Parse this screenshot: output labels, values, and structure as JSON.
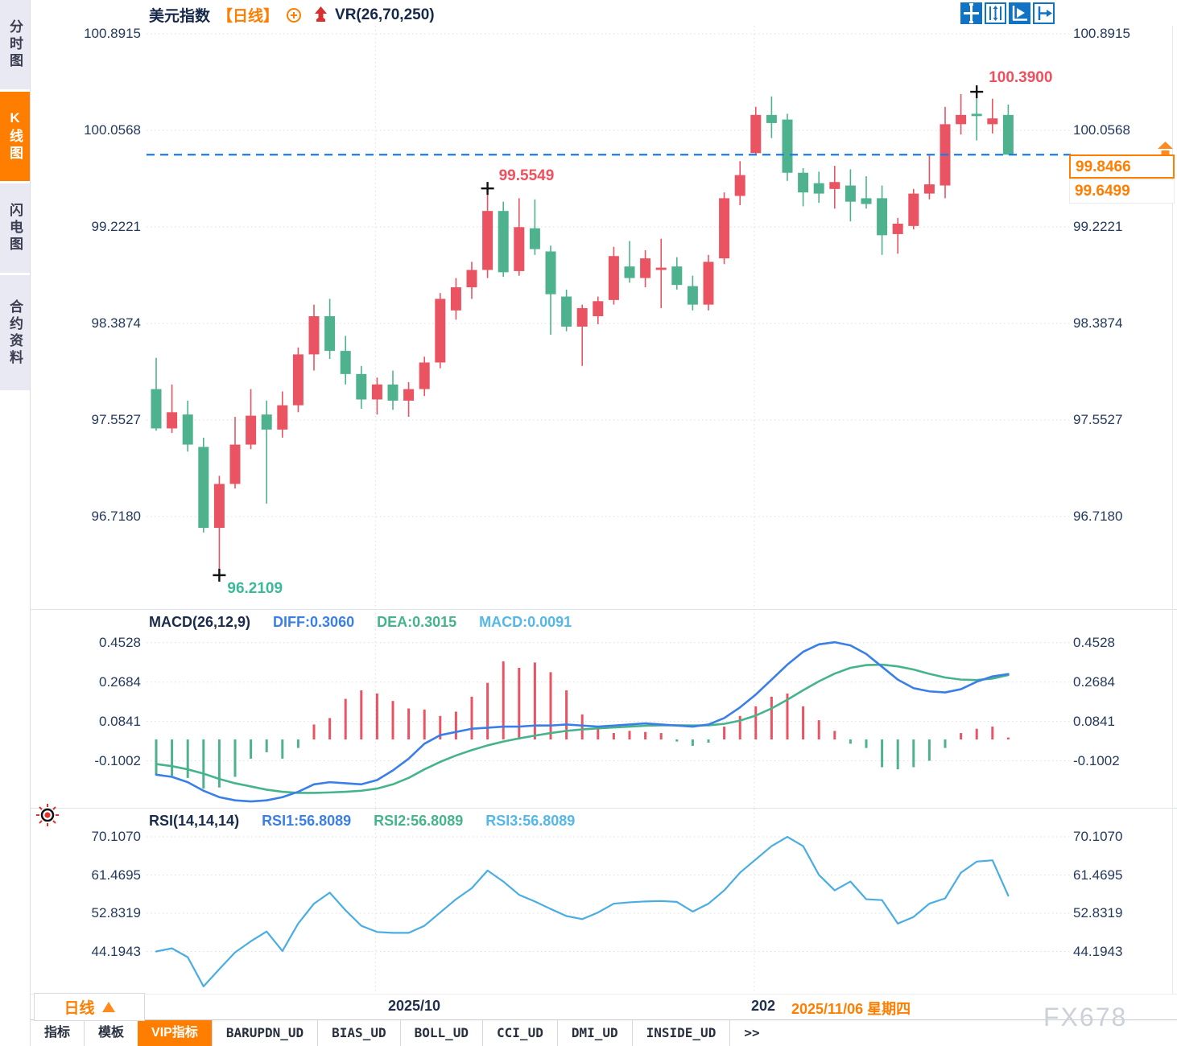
{
  "sidebar": {
    "items": [
      {
        "label": "分时图",
        "active": false
      },
      {
        "label": "K线图",
        "active": true
      },
      {
        "label": "闪电图",
        "active": false
      },
      {
        "label": "合约资料",
        "active": false
      }
    ]
  },
  "header": {
    "symbol": "美元指数",
    "period_tag": "【日线】",
    "indicator_label": "VR(26,70,250)"
  },
  "toolbar": {
    "icons": [
      "move-crosshair-icon",
      "axis-scale-icon",
      "auto-fit-icon",
      "go-to-latest-icon"
    ]
  },
  "price_axis": {
    "labels": [
      "100.8915",
      "100.0568",
      "99.2221",
      "98.3874",
      "97.5527",
      "96.7180"
    ]
  },
  "price_marks": {
    "current": "99.8466",
    "secondary": "99.6499",
    "high_annotation": "100.3900",
    "peak_annotation": "99.5549",
    "low_annotation": "96.2109"
  },
  "macd": {
    "title": "MACD(26,12,9)",
    "diff_label": "DIFF:0.3060",
    "dea_label": "DEA:0.3015",
    "macd_label": "MACD:0.0091",
    "axis": [
      "0.4528",
      "0.2684",
      "0.0841",
      "-0.1002"
    ]
  },
  "rsi": {
    "title": "RSI(14,14,14)",
    "rsi1_label": "RSI1:56.8089",
    "rsi2_label": "RSI2:56.8089",
    "rsi3_label": "RSI3:56.8089",
    "axis": [
      "70.1070",
      "61.4695",
      "52.8319",
      "44.1943"
    ]
  },
  "time_axis": {
    "period_button": "日线",
    "label_left": "2025/10",
    "label_partial": "202",
    "label_current": "2025/11/06 星期四"
  },
  "bottom_tabs": {
    "active": "VIP指标",
    "items": [
      "指标",
      "模板",
      "VIP指标",
      "BARUPDN_UD",
      "BIAS_UD",
      "BOLL_UD",
      "CCI_UD",
      "DMI_UD",
      "INSIDE_UD",
      ">>"
    ]
  },
  "watermark": "FX678",
  "colors": {
    "up": "#ea5462",
    "down": "#4fb28e",
    "accent_orange": "#ff7e00",
    "dashed_line_blue": "#1a7ce8",
    "diff_blue": "#3a7fe8",
    "dea_green": "#46b48a",
    "macd_cyan": "#54b7ea",
    "rsi_line": "#49ade4",
    "annotation_red": "#f0505e",
    "annotation_teal": "#3cb89a",
    "axis_text": "#24395c",
    "toolbar_blue": "#1272c4",
    "grid": "#dedede"
  },
  "chart_data": {
    "type": "candlestick",
    "title": "美元指数 日线",
    "indicator_header": "VR(26,70,250)",
    "price_gridlines": [
      100.8915,
      100.0568,
      99.2221,
      98.3874,
      97.5527,
      96.718
    ],
    "current_price": 99.8466,
    "secondary_price": 99.6499,
    "candles_ohlc": [
      [
        97.82,
        98.09,
        97.46,
        97.48
      ],
      [
        97.48,
        97.86,
        97.44,
        97.62
      ],
      [
        97.6,
        97.72,
        97.28,
        97.34
      ],
      [
        97.32,
        97.4,
        96.58,
        96.62
      ],
      [
        96.62,
        97.07,
        96.21,
        97.0
      ],
      [
        97.0,
        97.58,
        96.96,
        97.34
      ],
      [
        97.34,
        97.82,
        97.3,
        97.59
      ],
      [
        97.6,
        97.72,
        96.83,
        97.47
      ],
      [
        97.47,
        97.8,
        97.4,
        97.68
      ],
      [
        97.68,
        98.18,
        97.62,
        98.12
      ],
      [
        98.12,
        98.55,
        97.98,
        98.45
      ],
      [
        98.45,
        98.6,
        98.08,
        98.15
      ],
      [
        98.15,
        98.28,
        97.86,
        97.95
      ],
      [
        97.95,
        98.02,
        97.65,
        97.73
      ],
      [
        97.73,
        97.92,
        97.6,
        97.86
      ],
      [
        97.86,
        97.98,
        97.64,
        97.72
      ],
      [
        97.72,
        97.88,
        97.58,
        97.82
      ],
      [
        97.82,
        98.1,
        97.76,
        98.05
      ],
      [
        98.05,
        98.65,
        98.0,
        98.6
      ],
      [
        98.5,
        98.78,
        98.42,
        98.7
      ],
      [
        98.7,
        98.92,
        98.6,
        98.85
      ],
      [
        98.85,
        99.5549,
        98.78,
        99.36
      ],
      [
        99.36,
        99.44,
        98.79,
        98.83
      ],
      [
        98.84,
        99.47,
        98.8,
        99.22
      ],
      [
        99.21,
        99.46,
        98.98,
        99.03
      ],
      [
        99.01,
        99.06,
        98.29,
        98.64
      ],
      [
        98.62,
        98.68,
        98.32,
        98.36
      ],
      [
        98.36,
        98.55,
        98.02,
        98.52
      ],
      [
        98.45,
        98.62,
        98.38,
        98.58
      ],
      [
        98.59,
        99.05,
        98.55,
        98.97
      ],
      [
        98.88,
        99.1,
        98.74,
        98.78
      ],
      [
        98.78,
        99.02,
        98.7,
        98.95
      ],
      [
        98.85,
        99.12,
        98.52,
        98.87
      ],
      [
        98.88,
        98.96,
        98.68,
        98.72
      ],
      [
        98.71,
        98.8,
        98.5,
        98.55
      ],
      [
        98.55,
        98.98,
        98.5,
        98.92
      ],
      [
        98.95,
        99.52,
        98.9,
        99.47
      ],
      [
        99.49,
        99.79,
        99.41,
        99.67
      ],
      [
        99.86,
        100.26,
        99.84,
        100.19
      ],
      [
        100.19,
        100.35,
        99.99,
        100.12
      ],
      [
        100.15,
        100.2,
        99.62,
        99.69
      ],
      [
        99.69,
        99.73,
        99.4,
        99.52
      ],
      [
        99.6,
        99.7,
        99.43,
        99.51
      ],
      [
        99.55,
        99.75,
        99.38,
        99.61
      ],
      [
        99.58,
        99.72,
        99.27,
        99.44
      ],
      [
        99.47,
        99.66,
        99.38,
        99.42
      ],
      [
        99.47,
        99.58,
        98.98,
        99.15
      ],
      [
        99.16,
        99.3,
        98.99,
        99.25
      ],
      [
        99.23,
        99.55,
        99.2,
        99.51
      ],
      [
        99.51,
        99.84,
        99.46,
        99.59
      ],
      [
        99.58,
        100.26,
        99.47,
        100.11
      ],
      [
        100.11,
        100.37,
        100.02,
        100.19
      ],
      [
        100.2,
        100.39,
        99.97,
        100.18
      ],
      [
        100.11,
        100.33,
        100.03,
        100.16
      ],
      [
        100.19,
        100.28,
        99.8466,
        99.8466
      ]
    ],
    "annotations": [
      {
        "name": "low",
        "index": 4,
        "price": 96.2109,
        "label": "96.2109"
      },
      {
        "name": "peak",
        "index": 21,
        "price": 99.5549,
        "label": "99.5549"
      },
      {
        "name": "high",
        "index": 52,
        "price": 100.39,
        "label": "100.3900"
      }
    ],
    "time_gridline_indices": [
      14,
      38
    ],
    "macd": {
      "params": [
        26,
        12,
        9
      ],
      "diff": 0.306,
      "dea": 0.3015,
      "macd": 0.0091,
      "gridlines": [
        0.4528,
        0.2684,
        0.0841,
        -0.1002
      ],
      "hist": [
        -0.165,
        -0.17,
        -0.18,
        -0.23,
        -0.225,
        -0.175,
        -0.09,
        -0.06,
        -0.09,
        -0.04,
        0.07,
        0.1,
        0.19,
        0.23,
        0.215,
        0.18,
        0.145,
        0.14,
        0.11,
        0.13,
        0.2,
        0.265,
        0.365,
        0.335,
        0.36,
        0.315,
        0.23,
        0.117,
        0.057,
        0.03,
        0.04,
        0.035,
        0.03,
        -0.01,
        -0.03,
        -0.015,
        0.06,
        0.11,
        0.155,
        0.2,
        0.215,
        0.155,
        0.09,
        0.04,
        -0.02,
        -0.04,
        -0.13,
        -0.14,
        -0.13,
        -0.1,
        -0.04,
        0.03,
        0.05,
        0.06,
        0.009
      ],
      "diff_line": [
        -0.165,
        -0.175,
        -0.2,
        -0.24,
        -0.27,
        -0.285,
        -0.29,
        -0.285,
        -0.27,
        -0.245,
        -0.21,
        -0.2,
        -0.205,
        -0.21,
        -0.19,
        -0.145,
        -0.09,
        -0.02,
        0.02,
        0.035,
        0.05,
        0.055,
        0.06,
        0.06,
        0.065,
        0.065,
        0.07,
        0.065,
        0.06,
        0.065,
        0.07,
        0.075,
        0.07,
        0.065,
        0.06,
        0.07,
        0.1,
        0.15,
        0.21,
        0.28,
        0.35,
        0.41,
        0.445,
        0.455,
        0.44,
        0.4,
        0.34,
        0.28,
        0.24,
        0.225,
        0.22,
        0.235,
        0.27,
        0.295,
        0.306
      ],
      "dea_line": [
        -0.115,
        -0.125,
        -0.14,
        -0.16,
        -0.185,
        -0.205,
        -0.22,
        -0.235,
        -0.245,
        -0.25,
        -0.25,
        -0.248,
        -0.245,
        -0.24,
        -0.23,
        -0.21,
        -0.18,
        -0.14,
        -0.105,
        -0.075,
        -0.05,
        -0.028,
        -0.01,
        0.005,
        0.018,
        0.03,
        0.04,
        0.047,
        0.052,
        0.056,
        0.06,
        0.064,
        0.066,
        0.066,
        0.065,
        0.066,
        0.073,
        0.088,
        0.112,
        0.145,
        0.186,
        0.23,
        0.272,
        0.308,
        0.335,
        0.348,
        0.35,
        0.342,
        0.327,
        0.307,
        0.29,
        0.28,
        0.278,
        0.285,
        0.3015
      ]
    },
    "rsi": {
      "params": [
        14,
        14,
        14
      ],
      "rsi1": 56.8089,
      "rsi2": 56.8089,
      "rsi3": 56.8089,
      "gridlines": [
        70.107,
        61.4695,
        52.8319,
        44.1943
      ],
      "values": [
        44.2,
        44.9,
        42.9,
        36.3,
        40.2,
        44.0,
        46.5,
        48.7,
        44.3,
        50.5,
        55.0,
        57.5,
        53.5,
        50.0,
        48.6,
        48.4,
        48.4,
        50.0,
        53.0,
        56.0,
        58.5,
        62.5,
        60.0,
        57.0,
        55.5,
        53.8,
        52.2,
        51.5,
        53.0,
        55.0,
        55.3,
        55.5,
        55.6,
        55.4,
        53.2,
        55.0,
        58.0,
        62.0,
        65.0,
        68.0,
        70.1,
        68.0,
        61.5,
        58.0,
        60.0,
        56.0,
        55.8,
        50.5,
        52.0,
        55.0,
        56.2,
        62.0,
        64.5,
        64.8,
        56.8
      ]
    }
  }
}
